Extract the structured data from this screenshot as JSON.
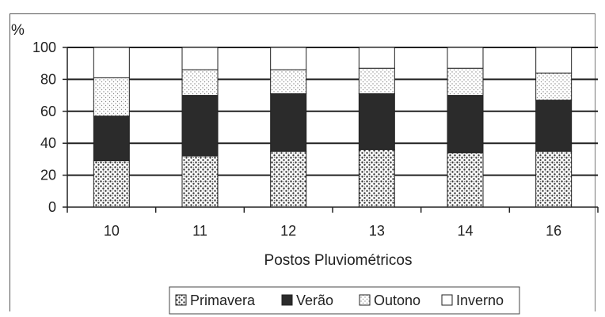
{
  "chart_data": {
    "type": "bar",
    "stacked": true,
    "ylabel": "%",
    "xlabel": "Postos Pluviométricos",
    "categories": [
      "10",
      "11",
      "12",
      "13",
      "14",
      "16"
    ],
    "ylim": [
      0,
      100
    ],
    "yticks": [
      0,
      20,
      40,
      60,
      80,
      100
    ],
    "grid": "horizontal",
    "legend_position": "bottom",
    "series": [
      {
        "name": "Primavera",
        "values": [
          29,
          32,
          35,
          36,
          34,
          35
        ],
        "fill": "dotted-pattern"
      },
      {
        "name": "Verão",
        "values": [
          28,
          38,
          36,
          35,
          36,
          32
        ],
        "fill": "#2b2b2b"
      },
      {
        "name": "Outono",
        "values": [
          24,
          16,
          15,
          16,
          17,
          17
        ],
        "fill": "light-dotted-pattern"
      },
      {
        "name": "Inverno",
        "values": [
          19,
          14,
          14,
          13,
          13,
          16
        ],
        "fill": "#ffffff"
      }
    ]
  }
}
